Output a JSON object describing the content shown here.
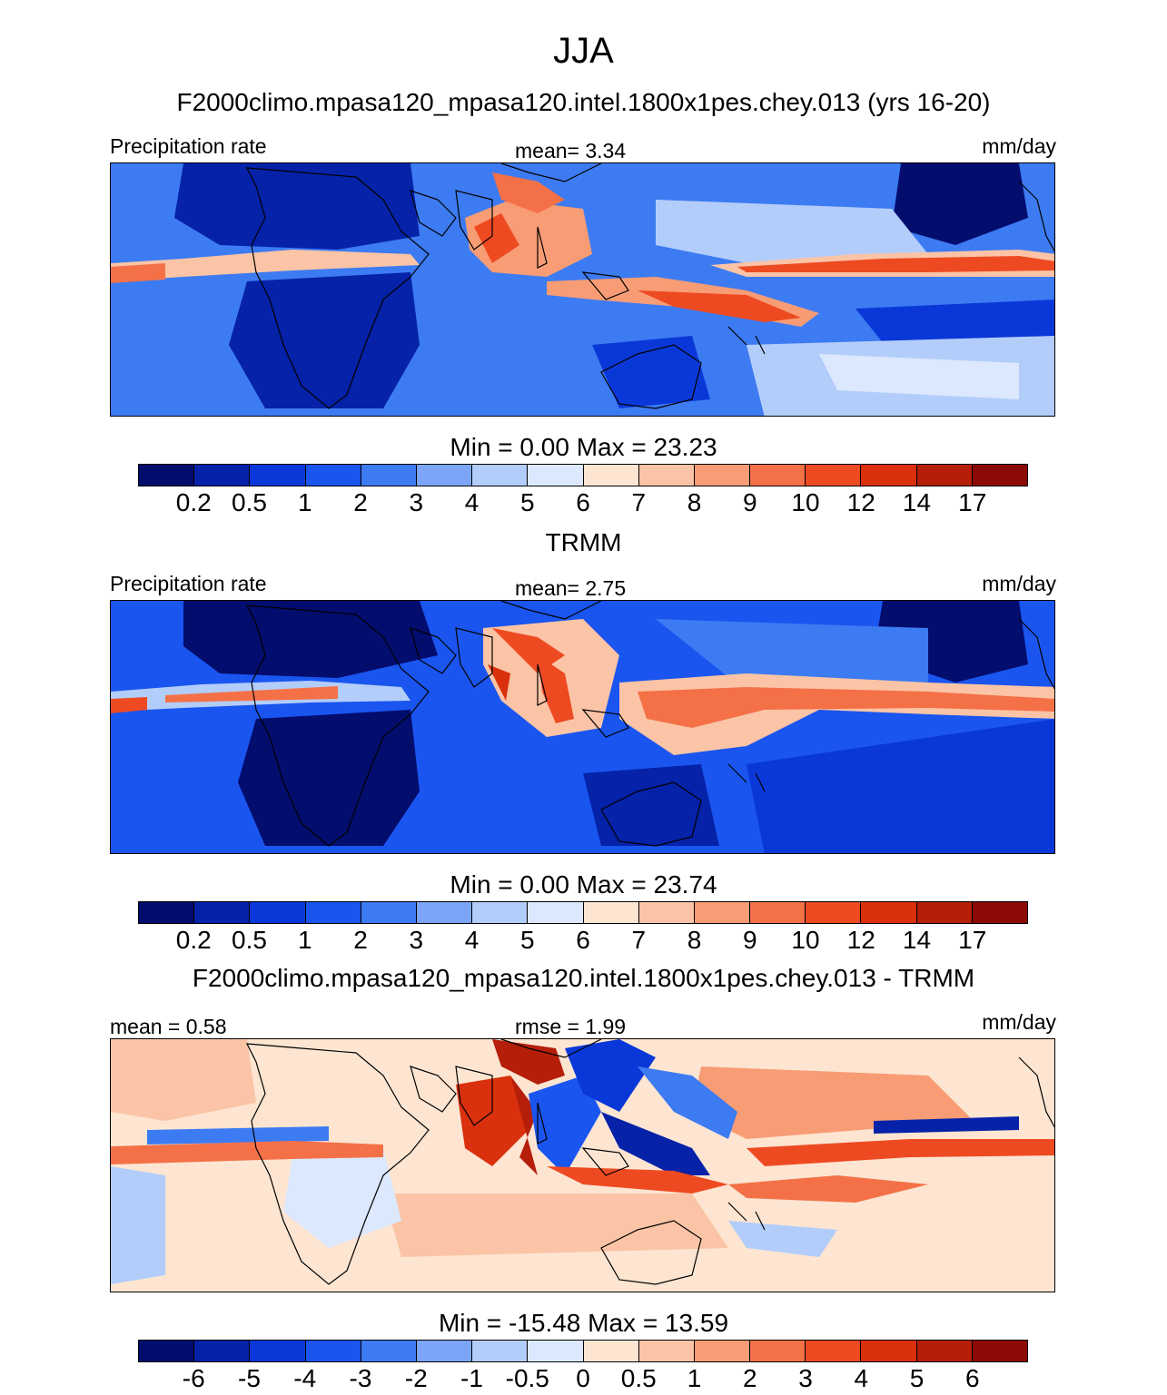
{
  "title": "JJA",
  "colors": {
    "precip": [
      "#020d6e",
      "#0522a8",
      "#0a38d8",
      "#1a55ef",
      "#3d7bf2",
      "#7ca4f7",
      "#b3cdfa",
      "#dbe8fd",
      "#fde5d2",
      "#fbc4a6",
      "#f89c75",
      "#f47148",
      "#ee4a22",
      "#da300d",
      "#b51f09",
      "#8b0a06"
    ],
    "diff": [
      "#020d6e",
      "#0522a8",
      "#0a38d8",
      "#1a55ef",
      "#3d7bf2",
      "#7ca4f7",
      "#b3cdfa",
      "#dbe8fd",
      "#fde5d2",
      "#fbc4a6",
      "#f89c75",
      "#f47148",
      "#ee4a22",
      "#da300d",
      "#b51f09",
      "#8b0a06"
    ]
  },
  "panels": [
    {
      "subtitle": "F2000climo.mpasa120_mpasa120.intel.1800x1pes.chey.013 (yrs 16-20)",
      "left_string": "Precipitation rate",
      "center_string": "mean=   3.34",
      "right_string": "mm/day",
      "minmax": "Min =   0.00 Max =  23.23",
      "ticks": [
        "0.2",
        "0.5",
        "1",
        "2",
        "3",
        "4",
        "5",
        "6",
        "7",
        "8",
        "9",
        "10",
        "12",
        "14",
        "17"
      ]
    },
    {
      "subtitle": "TRMM",
      "left_string": "Precipitation rate",
      "center_string": "mean=   2.75",
      "right_string": "mm/day",
      "minmax": "Min =   0.00 Max =  23.74",
      "ticks": [
        "0.2",
        "0.5",
        "1",
        "2",
        "3",
        "4",
        "5",
        "6",
        "7",
        "8",
        "9",
        "10",
        "12",
        "14",
        "17"
      ]
    },
    {
      "subtitle": "F2000climo.mpasa120_mpasa120.intel.1800x1pes.chey.013 - TRMM",
      "left_string": "mean =   0.58",
      "center_string": "rmse =   1.99",
      "right_string": "mm/day",
      "minmax": "Min = -15.48 Max =  13.59",
      "ticks": [
        "-6",
        "-5",
        "-4",
        "-3",
        "-2",
        "-1",
        "-0.5",
        "0",
        "0.5",
        "1",
        "2",
        "3",
        "4",
        "5",
        "6"
      ]
    }
  ]
}
